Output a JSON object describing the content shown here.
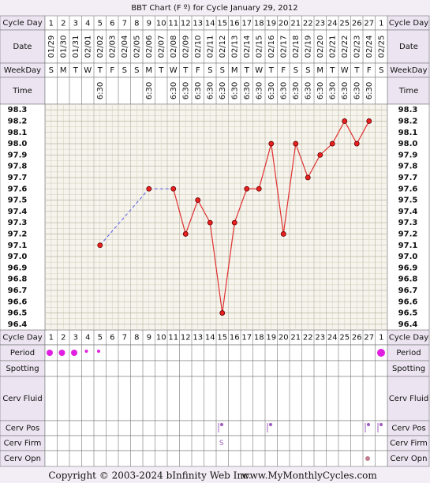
{
  "title": "BBT Chart (F º) for Cycle January 29, 2012",
  "labels": {
    "cycle_day": "Cycle Day",
    "date": "Date",
    "weekday": "WeekDay",
    "time": "Time",
    "period": "Period",
    "spotting": "Spotting",
    "cerv_fluid": "Cerv Fluid",
    "cerv_pos": "Cerv Pos",
    "cerv_firm": "Cerv Firm",
    "cerv_opn": "Cerv Opn"
  },
  "days": {
    "cycle_day": [
      1,
      2,
      3,
      4,
      5,
      6,
      7,
      8,
      9,
      10,
      11,
      12,
      13,
      14,
      15,
      16,
      17,
      18,
      19,
      20,
      21,
      22,
      23,
      24,
      25,
      26,
      27,
      1
    ],
    "date": [
      "01/29",
      "01/30",
      "01/31",
      "02/01",
      "02/02",
      "02/03",
      "02/04",
      "02/05",
      "02/06",
      "02/07",
      "02/08",
      "02/09",
      "02/10",
      "02/11",
      "02/12",
      "02/13",
      "02/14",
      "02/15",
      "02/16",
      "02/17",
      "02/18",
      "02/19",
      "02/20",
      "02/21",
      "02/22",
      "02/23",
      "02/24",
      "02/25"
    ],
    "weekday": [
      "S",
      "M",
      "T",
      "W",
      "T",
      "F",
      "S",
      "S",
      "M",
      "T",
      "W",
      "T",
      "F",
      "S",
      "S",
      "M",
      "T",
      "W",
      "T",
      "F",
      "S",
      "S",
      "M",
      "T",
      "W",
      "T",
      "F",
      "S"
    ],
    "time": [
      null,
      null,
      null,
      null,
      "6:30",
      null,
      null,
      null,
      "6:30",
      null,
      "6:30",
      "6:30",
      "6:30",
      "6:30",
      "6:30",
      "6:30",
      "6:30",
      "6:30",
      "6:30",
      "6:30",
      "6:30",
      "6:30",
      "6:30",
      "6:30",
      "6:30",
      "6:30",
      "6:30",
      null
    ],
    "cerv_firm": [
      null,
      null,
      null,
      null,
      null,
      null,
      null,
      null,
      null,
      null,
      null,
      null,
      null,
      null,
      "S",
      null,
      null,
      null,
      null,
      null,
      null,
      null,
      null,
      null,
      null,
      null,
      null,
      null
    ]
  },
  "chart_data": {
    "type": "line",
    "categories": [
      "01/29",
      "01/30",
      "01/31",
      "02/01",
      "02/02",
      "02/03",
      "02/04",
      "02/05",
      "02/06",
      "02/07",
      "02/08",
      "02/09",
      "02/10",
      "02/11",
      "02/12",
      "02/13",
      "02/14",
      "02/15",
      "02/16",
      "02/17",
      "02/18",
      "02/19",
      "02/20",
      "02/21",
      "02/22",
      "02/23",
      "02/24",
      "02/25"
    ],
    "values": [
      null,
      null,
      null,
      null,
      97.1,
      null,
      null,
      null,
      97.6,
      null,
      97.6,
      97.2,
      97.5,
      97.3,
      96.5,
      97.3,
      97.6,
      97.6,
      98.0,
      97.2,
      98.0,
      97.7,
      97.9,
      98.0,
      98.2,
      98.0,
      98.2,
      null
    ],
    "color": "#e03030",
    "gap_color": "#5a5ae6",
    "ylim": [
      96.35,
      98.35
    ],
    "yticks": [
      98.3,
      98.2,
      98.1,
      {
        "value": 98.0,
        "label": "98.0"
      },
      97.9,
      97.8,
      97.7,
      97.6,
      97.5,
      97.4,
      97.3,
      97.2,
      97.1,
      {
        "value": 97.0,
        "label": "97.0"
      },
      96.9,
      96.8,
      96.7,
      96.6,
      96.5,
      96.4
    ],
    "grid": true
  },
  "footer": {
    "copyright": "Copyright © 2003-2024 bInfinity Web Inc.",
    "site": "www.MyMonthlyCycles.com"
  }
}
